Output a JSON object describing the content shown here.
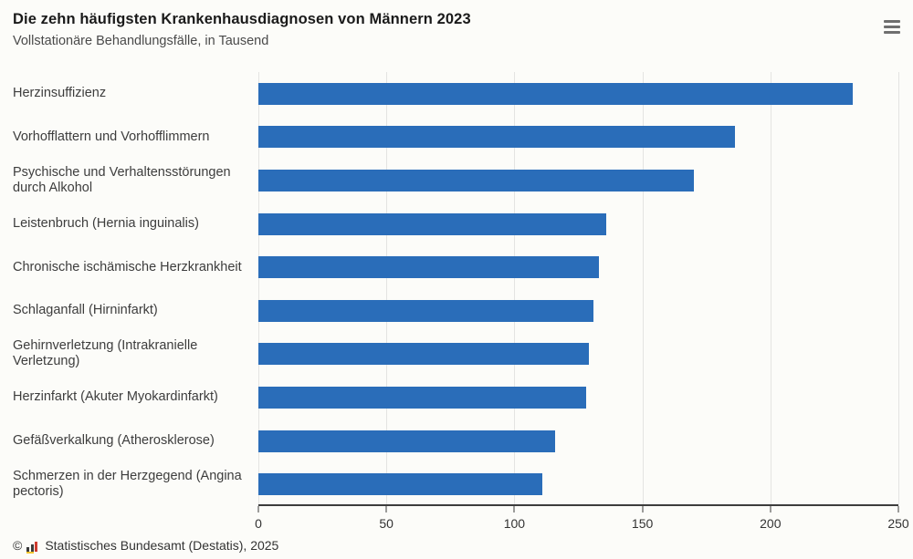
{
  "header": {
    "title": "Die zehn häufigsten Krankenhausdiagnosen von Männern 2023",
    "subtitle": "Vollstationäre Behandlungsfälle, in Tausend"
  },
  "menu": {
    "icon": "hamburger-menu-icon"
  },
  "chart_data": {
    "type": "bar",
    "orientation": "horizontal",
    "title": "Die zehn häufigsten Krankenhausdiagnosen von Männern 2023",
    "subtitle": "Vollstationäre Behandlungsfälle, in Tausend",
    "unit": "Tausend",
    "categories": [
      "Herzinsuffizienz",
      "Vorhofflattern und Vorhofflimmern",
      "Psychische und Verhaltensstörungen durch Alkohol",
      "Leistenbruch (Hernia inguinalis)",
      "Chronische ischämische Herzkrankheit",
      "Schlaganfall (Hirninfarkt)",
      "Gehirnverletzung (Intrakranielle Verletzung)",
      "Herzinfarkt (Akuter Myokardinfarkt)",
      "Gefäßverkalkung (Atherosklerose)",
      "Schmerzen in der Herzgegend (Angina pectoris)"
    ],
    "values": [
      232,
      186,
      170,
      136,
      133,
      131,
      129,
      128,
      116,
      111
    ],
    "xlim": [
      0,
      250
    ],
    "xticks": [
      0,
      50,
      100,
      150,
      200,
      250
    ],
    "grid": true,
    "legend": false,
    "bar_color": "#2a6db9",
    "gridline_color": "#e4e4e2",
    "axis_color": "#3c3c3c"
  },
  "footer": {
    "copyright_symbol": "©",
    "logo_icon": "destatis-logo-icon",
    "source_text": "Statistisches Bundesamt (Destatis), 2025"
  }
}
